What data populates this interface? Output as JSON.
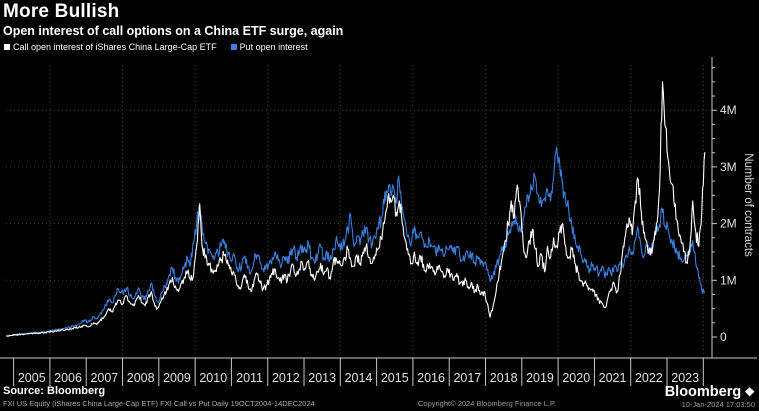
{
  "header": {
    "title": "More Bullish",
    "subtitle": "Open interest of call options on a China ETF surge, again"
  },
  "legend": [
    {
      "label": "Call open interest of iShares China Large-Cap ETF",
      "color": "#ffffff"
    },
    {
      "label": "Put open interest",
      "color": "#3b7fdd"
    }
  ],
  "footer": {
    "source": "Source: Bloomberg",
    "fine_print": "FXI US Equity (iShares China Large-Cap ETF) FXI Call vs Put  Daily 19OCT2004-14DEC2024",
    "brand": "Bloomberg",
    "copyright": "Copyright© 2024 Bloomberg Finance L.P.",
    "timestamp": "10-Jan-2024 17:03:50"
  },
  "chart_data": {
    "type": "line",
    "title": "More Bullish",
    "subtitle": "Open interest of call options on a China ETF surge, again",
    "ylabel": "Number of contracts",
    "xlabel": "",
    "x_start": "2004-10",
    "x_end": "2024-01",
    "resolution": "monthly",
    "x_tick_labels": [
      "2005",
      "2006",
      "2007",
      "2008",
      "2009",
      "2010",
      "2011",
      "2012",
      "2013",
      "2014",
      "2015",
      "2016",
      "2017",
      "2018",
      "2019",
      "2020",
      "2021",
      "2022",
      "2023"
    ],
    "grid_years": [
      2006,
      2008,
      2010,
      2012,
      2014,
      2016,
      2018,
      2020,
      2022,
      2024
    ],
    "y_ticks": [
      {
        "value": 0,
        "label": "0"
      },
      {
        "value": 1,
        "label": "1M"
      },
      {
        "value": 2,
        "label": "2M"
      },
      {
        "value": 3,
        "label": "3M"
      },
      {
        "value": 4,
        "label": "4M"
      }
    ],
    "ylim": [
      0,
      4.8
    ],
    "unit": "millions of contracts",
    "grid": "dotted",
    "legend_position": "top-left",
    "background": "#000000",
    "series": [
      {
        "name": "Call open interest of iShares China Large-Cap ETF",
        "color": "#ffffff",
        "values": [
          0.02,
          0.02,
          0.03,
          0.04,
          0.04,
          0.05,
          0.05,
          0.06,
          0.06,
          0.07,
          0.07,
          0.07,
          0.08,
          0.08,
          0.09,
          0.1,
          0.1,
          0.11,
          0.12,
          0.12,
          0.13,
          0.14,
          0.15,
          0.16,
          0.17,
          0.19,
          0.21,
          0.18,
          0.2,
          0.25,
          0.22,
          0.28,
          0.33,
          0.4,
          0.5,
          0.45,
          0.55,
          0.65,
          0.6,
          0.65,
          0.72,
          0.6,
          0.55,
          0.65,
          0.7,
          0.6,
          0.55,
          0.7,
          0.8,
          0.6,
          0.5,
          0.6,
          0.7,
          0.8,
          0.95,
          1.05,
          0.9,
          0.8,
          0.95,
          1.06,
          1.15,
          1.0,
          1.1,
          1.6,
          2.35,
          1.55,
          1.45,
          1.3,
          1.2,
          1.15,
          1.25,
          1.35,
          1.45,
          1.3,
          1.2,
          1.15,
          1.0,
          0.85,
          0.95,
          1.05,
          0.9,
          0.8,
          1.0,
          1.1,
          0.95,
          0.85,
          0.9,
          1.0,
          1.1,
          1.2,
          1.05,
          0.95,
          1.1,
          1.0,
          1.15,
          1.25,
          1.1,
          1.2,
          1.3,
          1.2,
          1.35,
          1.1,
          1.0,
          1.15,
          1.3,
          1.1,
          1.2,
          1.05,
          1.25,
          1.4,
          1.3,
          1.25,
          1.4,
          1.55,
          1.35,
          1.25,
          1.45,
          1.3,
          1.5,
          1.6,
          1.4,
          1.3,
          1.45,
          1.55,
          1.75,
          2.0,
          2.3,
          2.45,
          2.5,
          2.2,
          2.4,
          2.0,
          1.7,
          1.45,
          1.3,
          1.5,
          1.32,
          1.42,
          1.28,
          1.18,
          1.3,
          1.22,
          1.12,
          1.25,
          1.15,
          1.08,
          1.2,
          1.1,
          1.0,
          1.12,
          0.95,
          0.9,
          1.0,
          0.85,
          0.95,
          0.8,
          0.9,
          0.75,
          0.8,
          0.6,
          0.35,
          0.55,
          0.8,
          1.1,
          1.4,
          1.7,
          2.0,
          2.4,
          2.1,
          2.68,
          2.3,
          1.6,
          1.4,
          1.7,
          1.9,
          1.55,
          1.25,
          1.45,
          1.15,
          1.6,
          1.4,
          1.75,
          1.6,
          1.85,
          2.0,
          1.6,
          1.4,
          1.55,
          1.3,
          1.15,
          1.0,
          0.95,
          0.9,
          0.85,
          0.8,
          0.75,
          0.65,
          0.6,
          0.52,
          0.7,
          0.85,
          0.95,
          0.8,
          1.1,
          1.6,
          1.9,
          2.1,
          1.8,
          2.4,
          2.77,
          2.2,
          1.85,
          1.6,
          1.45,
          1.7,
          2.0,
          2.6,
          4.5,
          3.7,
          3.1,
          2.7,
          2.3,
          2.0,
          1.75,
          1.5,
          1.32,
          1.55,
          2.4,
          1.85,
          1.6,
          2.2,
          3.26
        ]
      },
      {
        "name": "Put open interest",
        "color": "#3b7fdd",
        "values": [
          0.02,
          0.03,
          0.03,
          0.04,
          0.05,
          0.05,
          0.06,
          0.06,
          0.07,
          0.07,
          0.08,
          0.08,
          0.09,
          0.09,
          0.1,
          0.11,
          0.12,
          0.13,
          0.14,
          0.15,
          0.16,
          0.17,
          0.19,
          0.21,
          0.23,
          0.26,
          0.3,
          0.26,
          0.3,
          0.36,
          0.32,
          0.4,
          0.48,
          0.56,
          0.66,
          0.6,
          0.72,
          0.85,
          0.77,
          0.8,
          0.88,
          0.72,
          0.68,
          0.78,
          0.85,
          0.72,
          0.65,
          0.82,
          0.95,
          0.75,
          0.63,
          0.7,
          0.82,
          0.95,
          1.1,
          1.2,
          1.05,
          0.95,
          1.1,
          1.25,
          1.4,
          1.3,
          1.66,
          2.0,
          2.3,
          1.8,
          1.65,
          1.55,
          1.45,
          1.4,
          1.5,
          1.6,
          1.65,
          1.5,
          1.4,
          1.45,
          1.3,
          1.2,
          1.3,
          1.42,
          1.25,
          1.15,
          1.35,
          1.45,
          1.3,
          1.2,
          1.25,
          1.3,
          1.4,
          1.5,
          1.35,
          1.25,
          1.4,
          1.3,
          1.45,
          1.55,
          1.4,
          1.5,
          1.6,
          1.5,
          1.65,
          1.4,
          1.3,
          1.45,
          1.6,
          1.4,
          1.52,
          1.35,
          1.55,
          1.7,
          1.6,
          1.55,
          1.7,
          1.9,
          2.1,
          1.6,
          1.78,
          1.62,
          1.82,
          1.92,
          1.72,
          1.62,
          1.76,
          1.9,
          2.1,
          2.35,
          2.55,
          2.62,
          2.65,
          2.45,
          2.73,
          2.3,
          2.0,
          1.8,
          1.65,
          1.95,
          1.75,
          1.85,
          1.7,
          1.6,
          1.7,
          1.6,
          1.5,
          1.62,
          1.52,
          1.45,
          1.55,
          1.58,
          1.48,
          1.6,
          1.42,
          1.36,
          1.5,
          1.4,
          1.46,
          1.32,
          1.42,
          1.36,
          1.3,
          1.18,
          0.98,
          1.08,
          1.22,
          1.38,
          1.52,
          1.66,
          1.8,
          1.95,
          2.05,
          2.0,
          1.9,
          2.1,
          2.3,
          2.5,
          2.6,
          2.82,
          2.5,
          2.3,
          2.45,
          2.6,
          2.4,
          2.8,
          3.35,
          3.1,
          2.7,
          2.4,
          2.24,
          2.0,
          1.8,
          1.6,
          1.45,
          1.35,
          1.25,
          1.2,
          1.28,
          1.22,
          1.1,
          1.25,
          1.04,
          1.2,
          1.1,
          1.25,
          1.15,
          1.32,
          1.22,
          1.45,
          1.6,
          1.5,
          1.7,
          1.9,
          1.55,
          1.45,
          1.62,
          1.5,
          1.68,
          1.85,
          1.98,
          2.2,
          1.95,
          1.88,
          1.72,
          1.58,
          1.5,
          1.4,
          1.34,
          1.45,
          1.55,
          1.7,
          1.3,
          1.04,
          0.82,
          0.78
        ]
      }
    ],
    "annotations": {
      "max_call_peak": "~4.5M contracts, late 2022",
      "max_put_peak": "~3.35M contracts, late 2019",
      "final_call_value": "~3.26M contracts, Jan 2024",
      "final_put_value": "~0.78M contracts, Jan 2024"
    }
  },
  "colors": {
    "background": "#000000",
    "call_line": "#ffffff",
    "put_line": "#3b7fdd",
    "grid": "#3f3f3f",
    "axis": "#c8c8c8",
    "tick_label": "#e0e0e0"
  }
}
